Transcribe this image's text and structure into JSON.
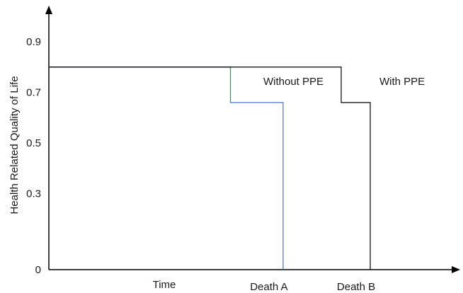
{
  "chart_data": {
    "type": "line",
    "title": "",
    "ylabel": "Health Related Quality of Life",
    "xlabel": "Time",
    "y_ticks": [
      "0.9",
      "0.7",
      "0.5",
      "0.3",
      "0"
    ],
    "y_tick_values": [
      0.9,
      0.7,
      0.5,
      0.3,
      0
    ],
    "x_markers": [
      {
        "label": "Death A",
        "x": 0.645
      },
      {
        "label": "Death B",
        "x": 0.885
      }
    ],
    "series": [
      {
        "name": "Without PPE",
        "color": "#4a72c4",
        "points": [
          [
            0.0,
            0.8
          ],
          [
            0.5,
            0.8
          ],
          [
            0.5,
            0.66
          ],
          [
            0.645,
            0.66
          ],
          [
            0.645,
            0.0
          ]
        ]
      },
      {
        "name": "With PPE",
        "color": "#000000",
        "points": [
          [
            0.0,
            0.8
          ],
          [
            0.805,
            0.8
          ],
          [
            0.805,
            0.66
          ],
          [
            0.885,
            0.66
          ],
          [
            0.885,
            0.0
          ]
        ]
      }
    ],
    "ylim": [
      0,
      1.0
    ],
    "xlim": [
      0,
      1.0
    ],
    "grid": false
  }
}
